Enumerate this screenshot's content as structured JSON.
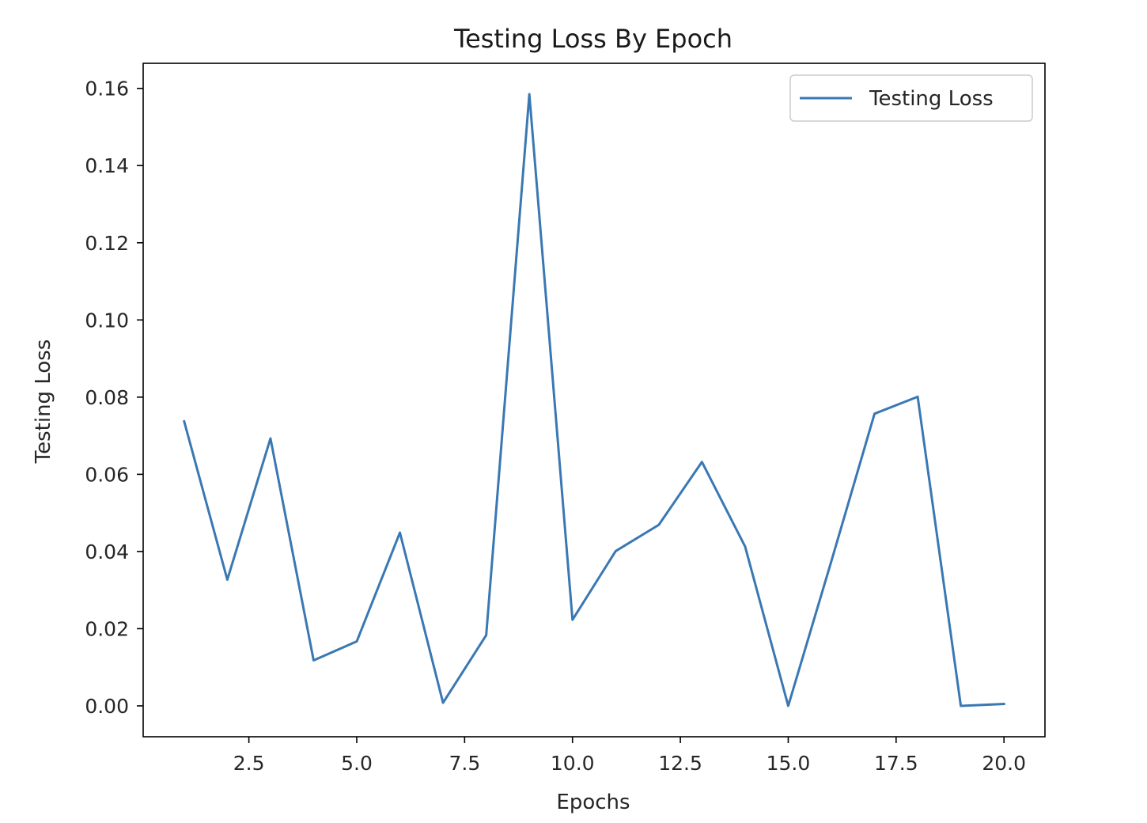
{
  "chart_data": {
    "type": "line",
    "title": "Testing Loss By Epoch",
    "xlabel": "Epochs",
    "ylabel": "Testing Loss",
    "xlim": [
      0.05,
      20.95
    ],
    "ylim": [
      -0.008,
      0.1665
    ],
    "xticks": [
      2.5,
      5.0,
      7.5,
      10.0,
      12.5,
      15.0,
      17.5,
      20.0
    ],
    "xtick_labels": [
      "2.5",
      "5.0",
      "7.5",
      "10.0",
      "12.5",
      "15.0",
      "17.5",
      "20.0"
    ],
    "yticks": [
      0.0,
      0.02,
      0.04,
      0.06,
      0.08,
      0.1,
      0.12,
      0.14,
      0.16
    ],
    "ytick_labels": [
      "0.00",
      "0.02",
      "0.04",
      "0.06",
      "0.08",
      "0.10",
      "0.12",
      "0.14",
      "0.16"
    ],
    "grid": false,
    "legend": "top-right",
    "series": [
      {
        "name": "Testing Loss",
        "color": "#3a78b3",
        "x": [
          1,
          2,
          3,
          4,
          5,
          6,
          7,
          8,
          9,
          10,
          11,
          12,
          13,
          14,
          15,
          16,
          17,
          18,
          19,
          20
        ],
        "y": [
          0.0737,
          0.0327,
          0.0693,
          0.0118,
          0.0167,
          0.0449,
          0.0008,
          0.0183,
          0.1585,
          0.0223,
          0.0401,
          0.0469,
          0.0632,
          0.0413,
          0.0,
          0.0375,
          0.0757,
          0.0801,
          0.0,
          0.0005
        ]
      }
    ]
  }
}
